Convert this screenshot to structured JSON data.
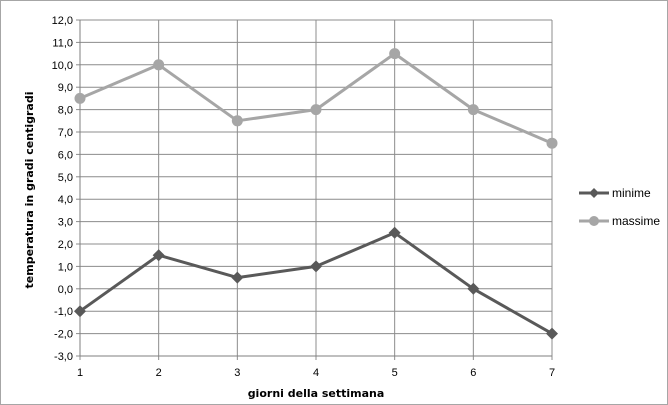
{
  "chart_data": {
    "type": "line",
    "title": "",
    "xlabel": "giorni della settimana",
    "ylabel": "temperatura in gradi centigradi",
    "x": [
      1,
      2,
      3,
      4,
      5,
      6,
      7
    ],
    "x_tick_labels": [
      "1",
      "2",
      "3",
      "4",
      "5",
      "6",
      "7"
    ],
    "ylim": [
      -3.0,
      12.0
    ],
    "y_tick_labels": [
      "-3,0",
      "-2,0",
      "-1,0",
      "0,0",
      "1,0",
      "2,0",
      "3,0",
      "4,0",
      "5,0",
      "6,0",
      "7,0",
      "8,0",
      "9,0",
      "10,0",
      "11,0",
      "12,0"
    ],
    "grid": true,
    "legend_position": "right",
    "series": [
      {
        "name": "minime",
        "values": [
          -1.0,
          1.5,
          0.5,
          1.0,
          2.5,
          0.0,
          -2.0
        ],
        "color": "#595959",
        "marker": "diamond"
      },
      {
        "name": "massime",
        "values": [
          8.5,
          10.0,
          7.5,
          8.0,
          10.5,
          8.0,
          6.5
        ],
        "color": "#a6a6a6",
        "marker": "circle"
      }
    ]
  }
}
